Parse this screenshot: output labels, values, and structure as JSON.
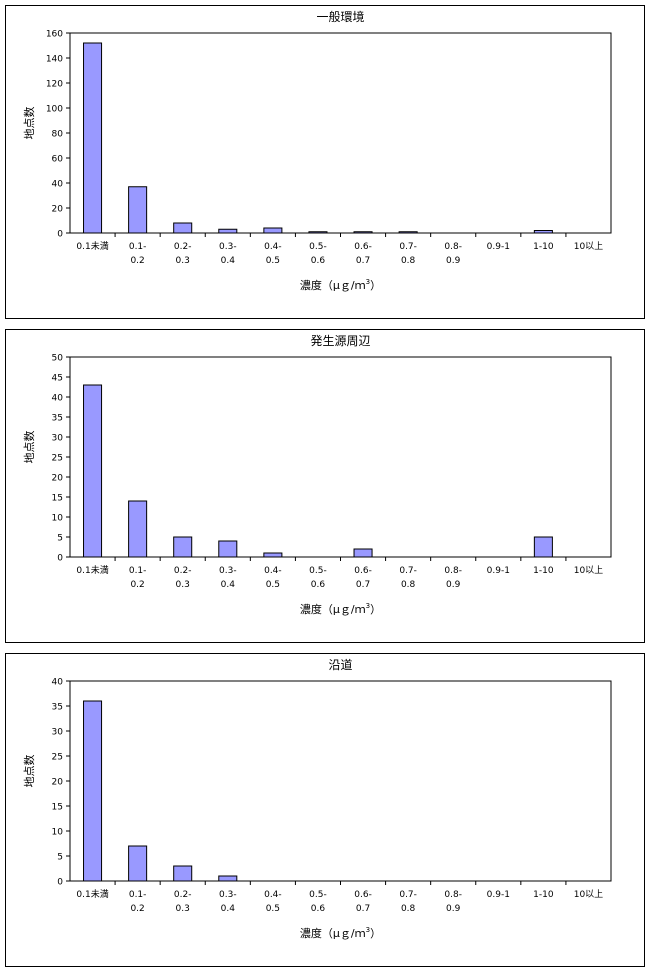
{
  "chart_data": [
    {
      "type": "bar",
      "title": "一般環境",
      "ylabel": "地点数",
      "xlabel_main": "濃度（μｇ/ｍ",
      "xlabel_sup": "3",
      "xlabel_end": "）",
      "ylim": [
        0,
        160
      ],
      "yticks": [
        0,
        20,
        40,
        60,
        80,
        100,
        120,
        140,
        160
      ],
      "categories": [
        [
          "0.1未満",
          ""
        ],
        [
          "0.1-",
          "0.2"
        ],
        [
          "0.2-",
          "0.3"
        ],
        [
          "0.3-",
          "0.4"
        ],
        [
          "0.4-",
          "0.5"
        ],
        [
          "0.5-",
          "0.6"
        ],
        [
          "0.6-",
          "0.7"
        ],
        [
          "0.7-",
          "0.8"
        ],
        [
          "0.8-",
          "0.9"
        ],
        [
          "0.9-1",
          ""
        ],
        [
          "1-10",
          ""
        ],
        [
          "10以上",
          ""
        ]
      ],
      "values": [
        152,
        37,
        8,
        3,
        4,
        1,
        1,
        1,
        0,
        0,
        2,
        0
      ],
      "bar_color": "#9999ff",
      "grid": false,
      "legend": "none"
    },
    {
      "type": "bar",
      "title": "発生源周辺",
      "ylabel": "地点数",
      "xlabel_main": "濃度（μｇ/ｍ",
      "xlabel_sup": "3",
      "xlabel_end": "）",
      "ylim": [
        0,
        50
      ],
      "yticks": [
        0,
        5,
        10,
        15,
        20,
        25,
        30,
        35,
        40,
        45,
        50
      ],
      "categories": [
        [
          "0.1未満",
          ""
        ],
        [
          "0.1-",
          "0.2"
        ],
        [
          "0.2-",
          "0.3"
        ],
        [
          "0.3-",
          "0.4"
        ],
        [
          "0.4-",
          "0.5"
        ],
        [
          "0.5-",
          "0.6"
        ],
        [
          "0.6-",
          "0.7"
        ],
        [
          "0.7-",
          "0.8"
        ],
        [
          "0.8-",
          "0.9"
        ],
        [
          "0.9-1",
          ""
        ],
        [
          "1-10",
          ""
        ],
        [
          "10以上",
          ""
        ]
      ],
      "values": [
        43,
        14,
        5,
        4,
        1,
        0,
        2,
        0,
        0,
        0,
        5,
        0
      ],
      "bar_color": "#9999ff",
      "grid": false,
      "legend": "none"
    },
    {
      "type": "bar",
      "title": "沿道",
      "ylabel": "地点数",
      "xlabel_main": "濃度（μｇ/ｍ",
      "xlabel_sup": "3",
      "xlabel_end": "）",
      "ylim": [
        0,
        40
      ],
      "yticks": [
        0,
        5,
        10,
        15,
        20,
        25,
        30,
        35,
        40
      ],
      "categories": [
        [
          "0.1未満",
          ""
        ],
        [
          "0.1-",
          "0.2"
        ],
        [
          "0.2-",
          "0.3"
        ],
        [
          "0.3-",
          "0.4"
        ],
        [
          "0.4-",
          "0.5"
        ],
        [
          "0.5-",
          "0.6"
        ],
        [
          "0.6-",
          "0.7"
        ],
        [
          "0.7-",
          "0.8"
        ],
        [
          "0.8-",
          "0.9"
        ],
        [
          "0.9-1",
          ""
        ],
        [
          "1-10",
          ""
        ],
        [
          "10以上",
          ""
        ]
      ],
      "values": [
        36,
        7,
        3,
        1,
        0,
        0,
        0,
        0,
        0,
        0,
        0,
        0
      ],
      "bar_color": "#9999ff",
      "grid": false,
      "legend": "none"
    }
  ]
}
